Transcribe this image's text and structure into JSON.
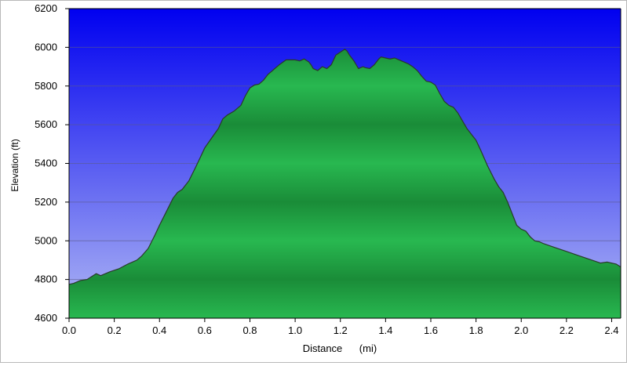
{
  "chart_data": {
    "type": "area",
    "title": "",
    "xlabel": "Distance",
    "xunit": "(mi)",
    "ylabel": "Elevation (ft)",
    "xlim": [
      0,
      2.44
    ],
    "ylim": [
      4600,
      6200
    ],
    "x_ticks": [
      "0.0",
      "0.2",
      "0.4",
      "0.6",
      "0.8",
      "1.0",
      "1.2",
      "1.4",
      "1.6",
      "1.8",
      "2.0",
      "2.2",
      "2.4"
    ],
    "y_ticks": [
      "4600",
      "4800",
      "5000",
      "5200",
      "5400",
      "5600",
      "5800",
      "6000",
      "6200"
    ],
    "grid": true,
    "colors": {
      "plot_bg_top": "#0000f0",
      "plot_bg_bottom": "#b0b8f4",
      "fill_light": "#28b850",
      "fill_dark": "#1a8c38",
      "outline": "#2a3a2a"
    },
    "series": [
      {
        "x": [
          0.0,
          0.02,
          0.05,
          0.08,
          0.1,
          0.12,
          0.14,
          0.18,
          0.22,
          0.26,
          0.3,
          0.32,
          0.35,
          0.38,
          0.4,
          0.43,
          0.46,
          0.48,
          0.5,
          0.53,
          0.56,
          0.58,
          0.6,
          0.63,
          0.66,
          0.68,
          0.7,
          0.73,
          0.76,
          0.78,
          0.8,
          0.82,
          0.84,
          0.86,
          0.88,
          0.9,
          0.93,
          0.96,
          1.0,
          1.02,
          1.04,
          1.06,
          1.07,
          1.08,
          1.1,
          1.12,
          1.14,
          1.16,
          1.18,
          1.2,
          1.22,
          1.23,
          1.24,
          1.26,
          1.28,
          1.3,
          1.31,
          1.33,
          1.35,
          1.37,
          1.38,
          1.4,
          1.42,
          1.44,
          1.46,
          1.48,
          1.5,
          1.52,
          1.54,
          1.56,
          1.58,
          1.6,
          1.62,
          1.64,
          1.66,
          1.68,
          1.7,
          1.72,
          1.74,
          1.76,
          1.78,
          1.8,
          1.82,
          1.85,
          1.88,
          1.9,
          1.92,
          1.94,
          1.96,
          1.98,
          2.0,
          2.02,
          2.04,
          2.06,
          2.08,
          2.1,
          2.15,
          2.2,
          2.25,
          2.3,
          2.35,
          2.38,
          2.42,
          2.44
        ],
        "values": [
          4775,
          4780,
          4795,
          4800,
          4815,
          4830,
          4820,
          4840,
          4855,
          4880,
          4900,
          4920,
          4960,
          5030,
          5080,
          5150,
          5220,
          5250,
          5265,
          5310,
          5380,
          5430,
          5480,
          5530,
          5580,
          5630,
          5650,
          5670,
          5700,
          5750,
          5790,
          5805,
          5810,
          5830,
          5860,
          5880,
          5910,
          5935,
          5935,
          5930,
          5940,
          5925,
          5910,
          5890,
          5880,
          5900,
          5890,
          5910,
          5960,
          5975,
          5990,
          5980,
          5960,
          5930,
          5890,
          5900,
          5895,
          5890,
          5910,
          5940,
          5950,
          5945,
          5940,
          5945,
          5935,
          5925,
          5915,
          5900,
          5880,
          5850,
          5825,
          5820,
          5805,
          5760,
          5720,
          5700,
          5690,
          5660,
          5620,
          5580,
          5550,
          5520,
          5470,
          5390,
          5320,
          5280,
          5250,
          5200,
          5140,
          5080,
          5060,
          5050,
          5020,
          5000,
          4995,
          4985,
          4965,
          4945,
          4925,
          4905,
          4885,
          4890,
          4880,
          4865
        ]
      }
    ]
  }
}
